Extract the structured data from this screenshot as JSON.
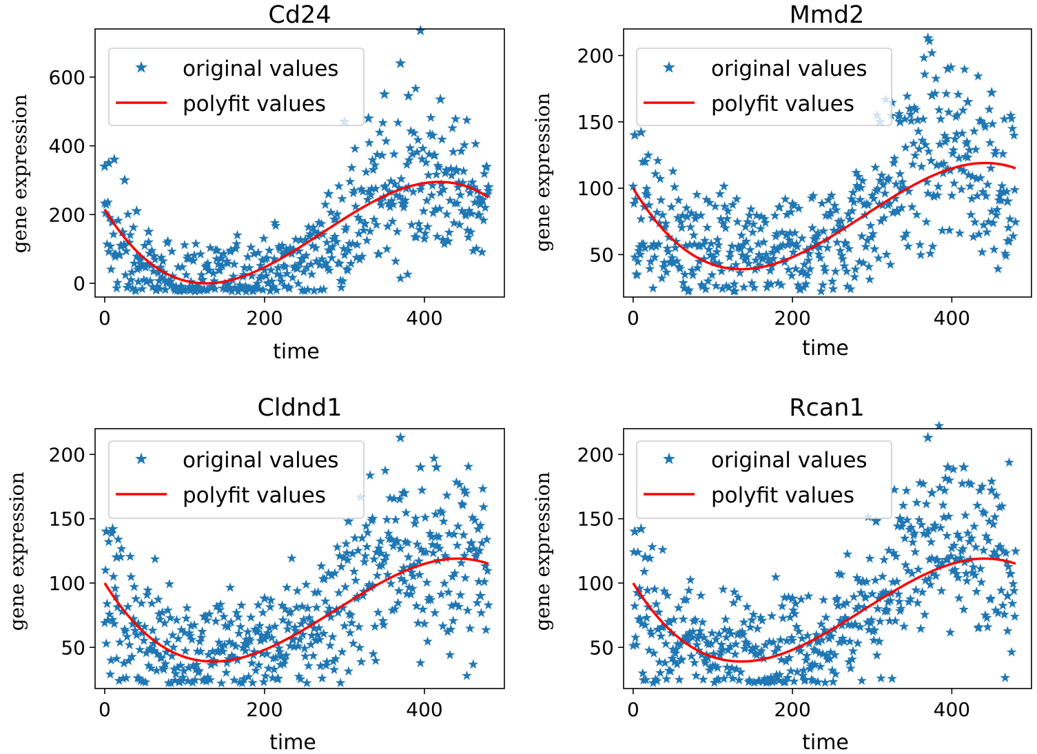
{
  "style": {
    "marker_color": "#1f77b4",
    "fit_color": "#ff0000",
    "frame_color": "#000000",
    "legend_border": "#cccccc"
  },
  "chart_data": [
    {
      "type": "scatter",
      "title": "Cd24",
      "xlabel": "time",
      "ylabel": "gene  expression",
      "xlim": [
        -12,
        500
      ],
      "ylim": [
        -40,
        740
      ],
      "xticks": [
        0,
        200,
        400
      ],
      "xtick_labels": [
        "0",
        "200",
        "400"
      ],
      "yticks": [
        0,
        200,
        400,
        600
      ],
      "ytick_labels": [
        "0",
        "200",
        "400",
        "600"
      ],
      "legend": {
        "position": "upper-left",
        "entries": [
          "original values",
          "polyfit values"
        ]
      },
      "series": [
        {
          "name": "original values",
          "marker": "star",
          "envelope": [
            [
              0,
              150
            ],
            [
              30,
              60
            ],
            [
              60,
              15
            ],
            [
              100,
              8
            ],
            [
              150,
              12
            ],
            [
              200,
              30
            ],
            [
              250,
              60
            ],
            [
              300,
              150
            ],
            [
              350,
              260
            ],
            [
              400,
              300
            ],
            [
              450,
              250
            ],
            [
              480,
              230
            ]
          ],
          "outliers": [
            [
              0,
              340
            ],
            [
              5,
              350
            ],
            [
              12,
              360
            ],
            [
              25,
              300
            ],
            [
              40,
              210
            ],
            [
              55,
              150
            ],
            [
              230,
              90
            ],
            [
              280,
              260
            ],
            [
              300,
              470
            ],
            [
              330,
              480
            ],
            [
              350,
              550
            ],
            [
              370,
              640
            ],
            [
              380,
              545
            ],
            [
              395,
              735
            ],
            [
              410,
              430
            ],
            [
              420,
              535
            ],
            [
              440,
              330
            ],
            [
              455,
              280
            ],
            [
              470,
              230
            ],
            [
              480,
              280
            ]
          ]
        },
        {
          "name": "polyfit values",
          "fit": "cubic",
          "points": [
            [
              0,
              215
            ],
            [
              125,
              0
            ],
            [
              420,
              295
            ],
            [
              480,
              250
            ]
          ]
        }
      ]
    },
    {
      "type": "scatter",
      "title": "Mmd2",
      "xlabel": "time",
      "ylabel": "gene  expression",
      "xlim": [
        -12,
        500
      ],
      "ylim": [
        18,
        220
      ],
      "xticks": [
        0,
        200,
        400
      ],
      "xtick_labels": [
        "0",
        "200",
        "400"
      ],
      "yticks": [
        50,
        100,
        150,
        200
      ],
      "ytick_labels": [
        "50",
        "100",
        "150",
        "200"
      ],
      "legend": {
        "position": "upper-left",
        "entries": [
          "original values",
          "polyfit values"
        ]
      },
      "series": [
        {
          "name": "original values",
          "marker": "star",
          "envelope": [
            [
              0,
              80
            ],
            [
              50,
              58
            ],
            [
              100,
              48
            ],
            [
              150,
              48
            ],
            [
              200,
              50
            ],
            [
              250,
              60
            ],
            [
              300,
              85
            ],
            [
              350,
              120
            ],
            [
              400,
              125
            ],
            [
              450,
              110
            ],
            [
              480,
              105
            ]
          ],
          "outliers": [
            [
              2,
              140
            ],
            [
              10,
              142
            ],
            [
              15,
              120
            ],
            [
              200,
              88
            ],
            [
              310,
              150
            ],
            [
              335,
              150
            ],
            [
              370,
              213
            ],
            [
              375,
              170
            ],
            [
              395,
              190
            ],
            [
              420,
              165
            ],
            [
              450,
              172
            ],
            [
              470,
              90
            ]
          ]
        },
        {
          "name": "polyfit values",
          "fit": "cubic",
          "points": [
            [
              0,
              100
            ],
            [
              135,
              39
            ],
            [
              440,
              119
            ],
            [
              480,
              115
            ]
          ]
        }
      ]
    },
    {
      "type": "scatter",
      "title": "Cldnd1",
      "xlabel": "time",
      "ylabel": "gene  expression",
      "xlim": [
        -12,
        500
      ],
      "ylim": [
        18,
        220
      ],
      "xticks": [
        0,
        200,
        400
      ],
      "xtick_labels": [
        "0",
        "200",
        "400"
      ],
      "yticks": [
        50,
        100,
        150,
        200
      ],
      "ytick_labels": [
        "50",
        "100",
        "150",
        "200"
      ],
      "legend": {
        "position": "upper-left",
        "entries": [
          "original values",
          "polyfit values"
        ]
      },
      "series": [
        {
          "name": "original values",
          "marker": "star",
          "envelope": [
            [
              0,
              80
            ],
            [
              50,
              58
            ],
            [
              100,
              48
            ],
            [
              150,
              48
            ],
            [
              200,
              50
            ],
            [
              250,
              60
            ],
            [
              300,
              85
            ],
            [
              350,
              120
            ],
            [
              400,
              125
            ],
            [
              450,
              110
            ],
            [
              480,
              105
            ]
          ],
          "outliers": [
            [
              2,
              140
            ],
            [
              10,
              142
            ],
            [
              15,
              120
            ],
            [
              200,
              88
            ],
            [
              305,
              148
            ],
            [
              335,
              150
            ],
            [
              370,
              213
            ],
            [
              375,
              170
            ],
            [
              395,
              190
            ],
            [
              415,
              190
            ],
            [
              450,
              172
            ],
            [
              470,
              90
            ]
          ]
        },
        {
          "name": "polyfit values",
          "fit": "cubic",
          "points": [
            [
              0,
              100
            ],
            [
              135,
              39
            ],
            [
              440,
              119
            ],
            [
              480,
              115
            ]
          ]
        }
      ]
    },
    {
      "type": "scatter",
      "title": "Rcan1",
      "xlabel": "time",
      "ylabel": "gene  expression",
      "xlim": [
        -12,
        500
      ],
      "ylim": [
        18,
        220
      ],
      "xticks": [
        0,
        200,
        400
      ],
      "xtick_labels": [
        "0",
        "200",
        "400"
      ],
      "yticks": [
        50,
        100,
        150,
        200
      ],
      "ytick_labels": [
        "50",
        "100",
        "150",
        "200"
      ],
      "legend": {
        "position": "upper-left",
        "entries": [
          "original values",
          "polyfit values"
        ]
      },
      "series": [
        {
          "name": "original values",
          "marker": "star",
          "envelope": [
            [
              0,
              80
            ],
            [
              50,
              58
            ],
            [
              100,
              48
            ],
            [
              150,
              48
            ],
            [
              200,
              50
            ],
            [
              250,
              60
            ],
            [
              300,
              85
            ],
            [
              350,
              120
            ],
            [
              400,
              125
            ],
            [
              450,
              110
            ],
            [
              480,
              105
            ]
          ],
          "outliers": [
            [
              2,
              140
            ],
            [
              10,
              142
            ],
            [
              15,
              120
            ],
            [
              200,
              88
            ],
            [
              305,
              148
            ],
            [
              335,
              150
            ],
            [
              370,
              213
            ],
            [
              375,
              170
            ],
            [
              395,
              190
            ],
            [
              415,
              190
            ],
            [
              450,
              172
            ],
            [
              470,
              90
            ]
          ]
        },
        {
          "name": "polyfit values",
          "fit": "cubic",
          "points": [
            [
              0,
              100
            ],
            [
              135,
              39
            ],
            [
              440,
              119
            ],
            [
              480,
              115
            ]
          ]
        }
      ]
    }
  ]
}
